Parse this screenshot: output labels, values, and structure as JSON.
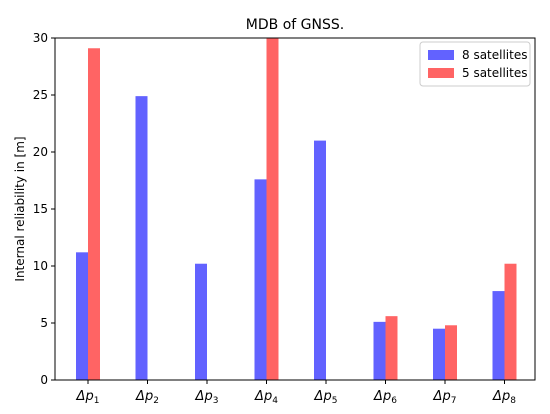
{
  "chart_data": {
    "type": "bar",
    "title": "MDB of GNSS.",
    "xlabel": "",
    "ylabel": "Internal reliability in [m]",
    "ylim": [
      0,
      30
    ],
    "yticks": [
      "0",
      "5",
      "10",
      "15",
      "20",
      "25",
      "30"
    ],
    "categories": [
      {
        "base": "Δp",
        "sub": "1"
      },
      {
        "base": "Δp",
        "sub": "2"
      },
      {
        "base": "Δp",
        "sub": "3"
      },
      {
        "base": "Δp",
        "sub": "4"
      },
      {
        "base": "Δp",
        "sub": "5"
      },
      {
        "base": "Δp",
        "sub": "6"
      },
      {
        "base": "Δp",
        "sub": "7"
      },
      {
        "base": "Δp",
        "sub": "8"
      }
    ],
    "series": [
      {
        "name": "8 satellites",
        "color": "#6262ff",
        "values": [
          11.2,
          24.9,
          10.2,
          17.6,
          21.0,
          5.1,
          4.5,
          7.8
        ]
      },
      {
        "name": "5 satellites",
        "color": "#ff6464",
        "values": [
          29.1,
          0,
          0,
          30.0,
          0,
          5.6,
          4.8,
          10.2
        ]
      }
    ],
    "legend_position": "top-right",
    "grid": false
  }
}
